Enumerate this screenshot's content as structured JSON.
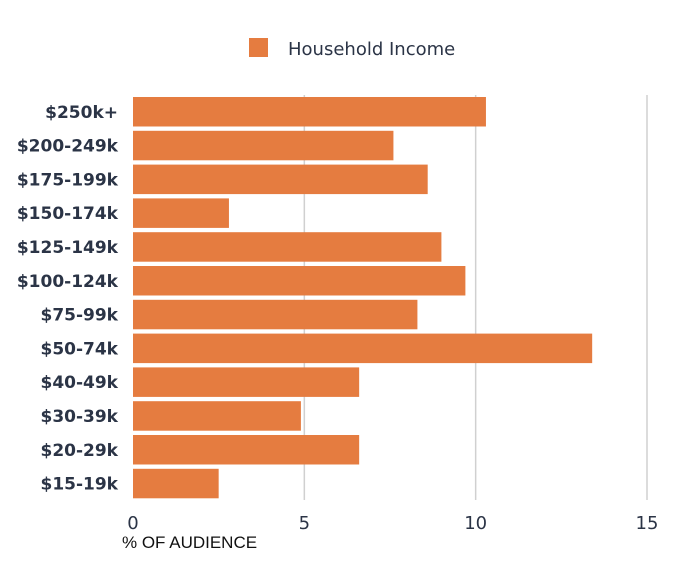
{
  "chart_data": {
    "type": "bar",
    "orientation": "horizontal",
    "categories": [
      "$250k+",
      "$200-249k",
      "$175-199k",
      "$150-174k",
      "$125-149k",
      "$100-124k",
      "$75-99k",
      "$50-74k",
      "$40-49k",
      "$30-39k",
      "$20-29k",
      "$15-19k"
    ],
    "series": [
      {
        "name": "Household Income",
        "color": "#e57c40",
        "values": [
          10.3,
          7.6,
          8.6,
          2.8,
          9.0,
          9.7,
          8.3,
          13.4,
          6.6,
          4.9,
          6.6,
          2.5
        ]
      }
    ],
    "xlabel": "% OF AUDIENCE",
    "xlim": [
      0,
      15
    ],
    "xticks": [
      0,
      5,
      10,
      15
    ],
    "grid": "vertical",
    "legend": "top-center"
  }
}
